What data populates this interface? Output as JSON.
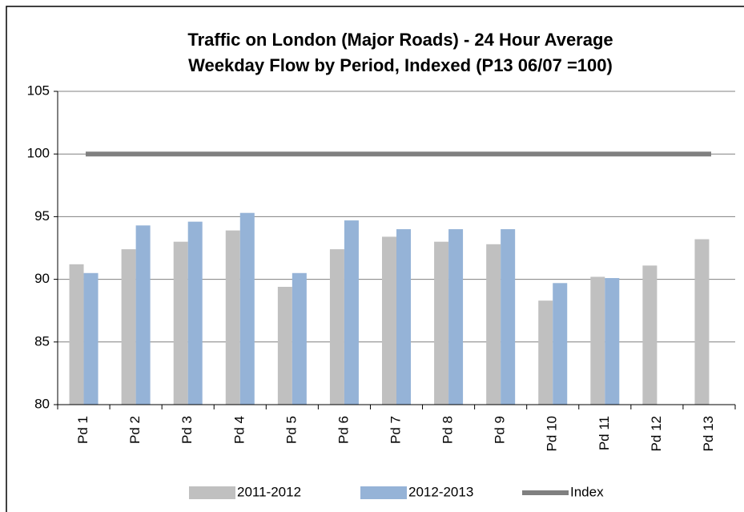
{
  "chart_data": {
    "type": "bar",
    "title": [
      "Traffic on London (Major Roads)  - 24 Hour Average",
      "Weekday Flow by Period, Indexed (P13 06/07 =100)"
    ],
    "categories": [
      "Pd 1",
      "Pd 2",
      "Pd 3",
      "Pd 4",
      "Pd 5",
      "Pd 6",
      "Pd 7",
      "Pd 8",
      "Pd 9",
      "Pd 10",
      "Pd 11",
      "Pd 12",
      "Pd 13"
    ],
    "series": [
      {
        "name": "2011-2012",
        "color": "#c0c0c0",
        "values": [
          91.2,
          92.4,
          93.0,
          93.9,
          89.4,
          92.4,
          93.4,
          93.0,
          92.8,
          88.3,
          90.2,
          91.1,
          93.2
        ]
      },
      {
        "name": "2012-2013",
        "color": "#95b3d7",
        "values": [
          90.5,
          94.3,
          94.6,
          95.3,
          90.5,
          94.7,
          94.0,
          94.0,
          94.0,
          89.7,
          90.1,
          null,
          null
        ]
      },
      {
        "name": "Index",
        "color": "#808080",
        "type": "line",
        "values": [
          100,
          100,
          100,
          100,
          100,
          100,
          100,
          100,
          100,
          100,
          100,
          100,
          100
        ]
      }
    ],
    "ylim": [
      80,
      105
    ],
    "yticks": [
      80,
      85,
      90,
      95,
      100,
      105
    ],
    "grid": true
  }
}
